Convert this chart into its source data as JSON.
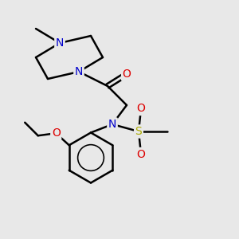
{
  "bg_color": "#e8e8e8",
  "bond_color": "#000000",
  "N_color": "#0000cc",
  "O_color": "#dd0000",
  "S_color": "#aaaa00",
  "line_width": 1.8,
  "font_size": 10,
  "figsize": [
    3.0,
    3.0
  ],
  "dpi": 100,
  "xlim": [
    0,
    10
  ],
  "ylim": [
    0,
    10
  ]
}
